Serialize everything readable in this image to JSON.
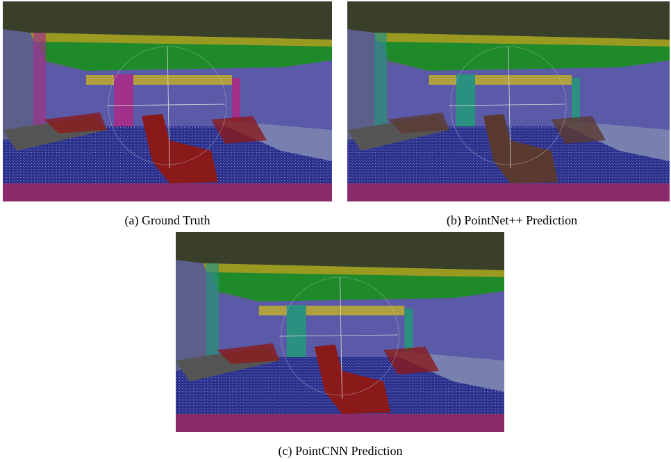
{
  "figure": {
    "panels": [
      {
        "caption": "(a) Ground Truth"
      },
      {
        "caption": "(b) PointNet++ Prediction"
      },
      {
        "caption": "(c) PointCNN Prediction"
      }
    ]
  }
}
